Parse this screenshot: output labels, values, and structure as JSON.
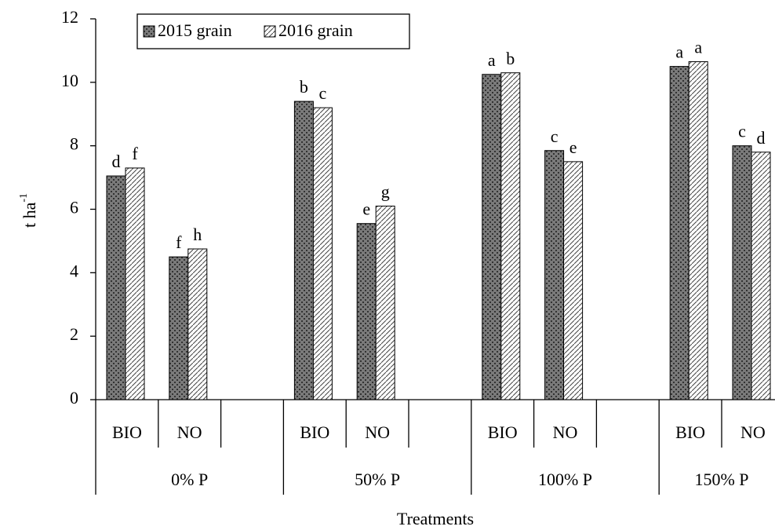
{
  "chart_data": {
    "type": "bar",
    "xlabel": "Treatments",
    "ylabel": "t ha",
    "ylabel_superscript": "-1",
    "categories": [
      "BIO",
      "NO",
      null,
      "BIO",
      "NO",
      null,
      "BIO",
      "NO",
      null,
      "BIO",
      "NO"
    ],
    "groups": [
      "0% P",
      "50% P",
      "100% P",
      "150% P"
    ],
    "series": [
      {
        "name": "2015 grain",
        "color": "#7a7a7a",
        "values": [
          7.05,
          4.5,
          null,
          9.4,
          5.55,
          null,
          10.25,
          7.85,
          null,
          10.5,
          8.0
        ],
        "significance_labels": [
          "d",
          "f",
          null,
          "b",
          "e",
          null,
          "a",
          "c",
          null,
          "a",
          "c"
        ]
      },
      {
        "name": "2016 grain",
        "color": "#ffffff",
        "values": [
          7.3,
          4.75,
          null,
          9.2,
          6.1,
          null,
          10.3,
          7.5,
          null,
          10.65,
          7.8
        ],
        "significance_labels": [
          "f",
          "h",
          null,
          "c",
          "g",
          null,
          "b",
          "e",
          null,
          "a",
          "d"
        ]
      }
    ],
    "ylim": [
      0,
      12
    ],
    "yticks": [
      0,
      2,
      4,
      6,
      8,
      10,
      12
    ],
    "grid": false,
    "legend": "top-left"
  }
}
